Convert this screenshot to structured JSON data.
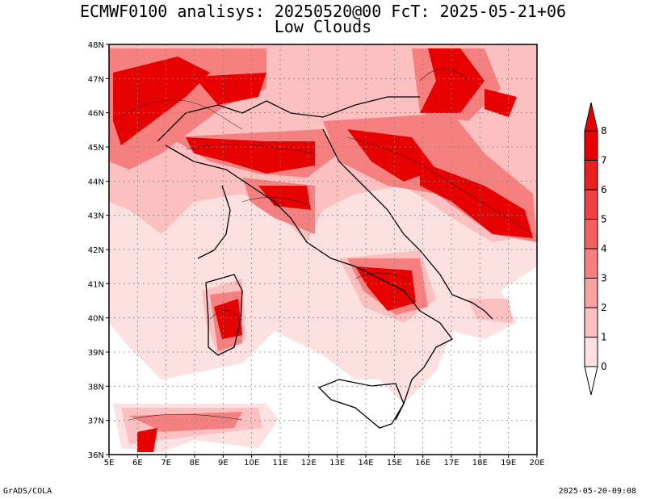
{
  "title": "ECMWF0100 analisys: 20250520@00 FcT: 2025-05-21+06",
  "subtitle": "Low Clouds",
  "footer": {
    "left": "GrADS/COLA",
    "right": "2025-05-20-09:08"
  },
  "map": {
    "lon_range": [
      5,
      20
    ],
    "lat_range": [
      36,
      48
    ],
    "lon_ticks": [
      "5E",
      "6E",
      "7E",
      "8E",
      "9E",
      "10E",
      "11E",
      "12E",
      "13E",
      "14E",
      "15E",
      "16E",
      "17E",
      "18E",
      "19E",
      "20E"
    ],
    "lat_ticks": [
      "36N",
      "37N",
      "38N",
      "39N",
      "40N",
      "41N",
      "42N",
      "43N",
      "44N",
      "45N",
      "46N",
      "47N",
      "48N"
    ],
    "grid": "dotted",
    "field": "Low Clouds",
    "colorbar": {
      "levels": [
        "0",
        "1",
        "2",
        "3",
        "4",
        "5",
        "6",
        "7",
        "8"
      ],
      "colors": [
        "#ffffff",
        "#fde0e0",
        "#fcc0c0",
        "#f9a0a0",
        "#f68080",
        "#f26060",
        "#ee4040",
        "#ea2020",
        "#e60000"
      ]
    }
  }
}
